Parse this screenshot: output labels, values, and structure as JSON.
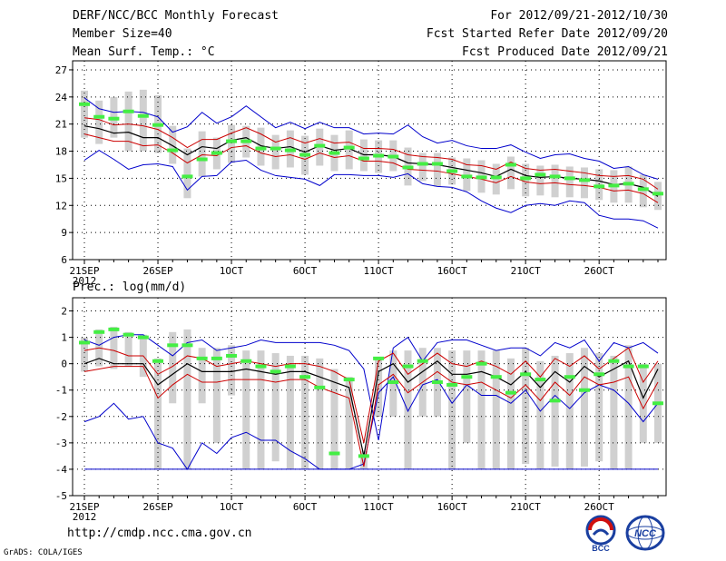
{
  "header": {
    "title": "DERF/NCC/BCC Monthly Forecast",
    "member_size": "Member Size=40",
    "variable": "Mean Surf. Temp.: °C",
    "forecast_range": "For 2012/09/21-2012/10/30",
    "started_refer": "Fcst Started Refer Date 2012/09/20",
    "produced": "Fcst Produced Date 2012/09/21"
  },
  "prec_title": "Prec.: log(mm/d)",
  "footer": {
    "url": "http://cmdp.ncc.cma.gov.cn",
    "credit": "GrADS: COLA/IGES",
    "logo1_text": "BCC",
    "logo2_text": "NCC"
  },
  "colors": {
    "envelope": "#0000cc",
    "spread": "#cc0000",
    "mean": "#000000",
    "box": "#d0d0d0",
    "median": "#44ee44",
    "axis": "#000000"
  },
  "chart_data": [
    {
      "type": "line",
      "title": "Mean Surf. Temp.: °C",
      "ylabel": "°C",
      "ylim": [
        6,
        28
      ],
      "yticks": [
        6,
        9,
        12,
        15,
        18,
        21,
        24,
        27
      ],
      "xtick_labels": [
        {
          "day": 1,
          "label": "21SEP"
        },
        {
          "day": 6,
          "label": "26SEP"
        },
        {
          "day": 11,
          "label": "1OCT"
        },
        {
          "day": 16,
          "label": "6OCT"
        },
        {
          "day": 21,
          "label": "11OCT"
        },
        {
          "day": 26,
          "label": "16OCT"
        },
        {
          "day": 31,
          "label": "21OCT"
        },
        {
          "day": 36,
          "label": "26OCT"
        }
      ],
      "year_label": "2012",
      "days": 40,
      "series": [
        {
          "name": "max",
          "values": [
            23.9,
            22.7,
            22.3,
            22.4,
            22.3,
            21.8,
            20.1,
            20.7,
            22.3,
            21.1,
            21.8,
            23.0,
            21.8,
            20.6,
            21.2,
            20.5,
            21.2,
            20.6,
            20.6,
            19.9,
            20.0,
            19.9,
            20.9,
            19.6,
            18.9,
            19.2,
            18.6,
            18.3,
            18.3,
            18.7,
            17.9,
            17.2,
            17.6,
            17.7,
            17.2,
            16.9,
            16.1,
            16.3,
            15.4,
            14.9
          ]
        },
        {
          "name": "upper",
          "values": [
            21.7,
            21.5,
            20.9,
            21.0,
            20.8,
            20.4,
            19.5,
            18.4,
            19.3,
            19.3,
            20.0,
            20.6,
            19.9,
            19.0,
            19.5,
            18.9,
            19.4,
            18.9,
            19.0,
            18.3,
            18.3,
            18.2,
            17.6,
            17.4,
            17.3,
            17.1,
            16.5,
            16.4,
            16.0,
            16.8,
            16.1,
            15.9,
            16.0,
            15.8,
            15.6,
            15.3,
            15.2,
            15.3,
            14.9,
            13.8
          ]
        },
        {
          "name": "mean",
          "values": [
            20.8,
            20.5,
            20.0,
            20.1,
            19.5,
            19.5,
            18.6,
            17.6,
            18.5,
            18.3,
            19.2,
            19.5,
            18.6,
            18.3,
            18.5,
            17.9,
            18.6,
            18.1,
            18.3,
            17.6,
            17.6,
            17.4,
            16.7,
            16.6,
            16.5,
            16.2,
            15.9,
            15.6,
            15.2,
            16.0,
            15.3,
            15.1,
            15.2,
            15.0,
            14.9,
            14.7,
            14.3,
            14.4,
            14.0,
            13.0
          ]
        },
        {
          "name": "lower",
          "values": [
            19.9,
            19.5,
            19.1,
            19.1,
            18.6,
            18.7,
            17.8,
            16.7,
            17.6,
            17.5,
            18.4,
            18.6,
            17.8,
            17.4,
            17.6,
            17.1,
            17.8,
            17.3,
            17.5,
            16.9,
            16.9,
            16.7,
            16.0,
            15.9,
            15.8,
            15.5,
            15.2,
            14.9,
            14.5,
            15.2,
            14.6,
            14.4,
            14.5,
            14.3,
            14.2,
            14.0,
            13.6,
            13.7,
            13.3,
            12.3
          ]
        },
        {
          "name": "min",
          "values": [
            17.0,
            18.1,
            17.1,
            16.0,
            16.5,
            16.6,
            16.3,
            13.7,
            15.2,
            15.3,
            16.8,
            17.0,
            15.9,
            15.3,
            15.1,
            14.9,
            14.2,
            15.4,
            15.4,
            15.3,
            15.3,
            15.1,
            15.5,
            14.4,
            14.1,
            14.0,
            13.5,
            12.5,
            11.7,
            11.2,
            12.0,
            12.2,
            12.0,
            12.5,
            12.3,
            10.9,
            10.5,
            10.5,
            10.3,
            9.5
          ]
        },
        {
          "name": "box_top",
          "values": [
            24.7,
            23.6,
            24.0,
            24.6,
            24.8,
            24.2,
            20.8,
            18.3,
            20.2,
            19.5,
            20.9,
            20.8,
            20.6,
            19.8,
            20.3,
            19.7,
            20.5,
            19.8,
            20.3,
            19.3,
            19.2,
            19.2,
            18.4,
            17.8,
            17.8,
            17.3,
            17.2,
            17.0,
            16.6,
            17.4,
            16.6,
            16.4,
            16.5,
            16.3,
            16.2,
            16.0,
            15.9,
            16.3,
            15.4,
            14.6
          ]
        },
        {
          "name": "box_bottom",
          "values": [
            19.5,
            18.8,
            19.5,
            18.0,
            18.0,
            17.8,
            16.6,
            12.8,
            15.2,
            16.0,
            16.7,
            17.3,
            16.4,
            16.0,
            16.2,
            15.4,
            16.4,
            15.8,
            16.0,
            15.8,
            15.6,
            15.8,
            14.2,
            14.7,
            14.1,
            14.3,
            13.6,
            13.4,
            13.2,
            13.8,
            13.0,
            13.1,
            12.9,
            12.9,
            12.8,
            12.6,
            12.3,
            12.3,
            11.8,
            11.5
          ]
        },
        {
          "name": "median",
          "values": [
            23.2,
            21.8,
            21.6,
            22.4,
            21.9,
            20.9,
            18.1,
            15.2,
            17.1,
            17.8,
            19.1,
            19.1,
            18.3,
            18.3,
            18.1,
            17.6,
            18.6,
            17.8,
            18.4,
            17.2,
            17.5,
            17.4,
            16.2,
            16.6,
            16.6,
            15.8,
            15.2,
            15.1,
            15.1,
            16.5,
            15.0,
            15.4,
            15.2,
            15.0,
            14.8,
            14.1,
            14.2,
            14.4,
            13.8,
            13.3
          ]
        }
      ]
    },
    {
      "type": "line",
      "title": "Prec.: log(mm/d)",
      "ylabel": "log(mm/d)",
      "ylim": [
        -5,
        2.5
      ],
      "yticks": [
        -5,
        -4,
        -3,
        -2,
        -1,
        0,
        1,
        2
      ],
      "xtick_labels": [
        {
          "day": 1,
          "label": "21SEP"
        },
        {
          "day": 6,
          "label": "26SEP"
        },
        {
          "day": 11,
          "label": "1OCT"
        },
        {
          "day": 16,
          "label": "6OCT"
        },
        {
          "day": 21,
          "label": "11OCT"
        },
        {
          "day": 26,
          "label": "16OCT"
        },
        {
          "day": 31,
          "label": "21OCT"
        },
        {
          "day": 36,
          "label": "26OCT"
        }
      ],
      "year_label": "2012",
      "days": 40,
      "series": [
        {
          "name": "max",
          "values": [
            0.9,
            0.7,
            1.0,
            1.1,
            1.1,
            0.7,
            0.3,
            0.8,
            0.9,
            0.5,
            0.6,
            0.7,
            0.9,
            0.8,
            0.8,
            0.8,
            0.8,
            0.7,
            0.5,
            -0.2,
            -2.9,
            0.6,
            1.0,
            0.1,
            0.8,
            0.9,
            0.9,
            0.7,
            0.5,
            0.6,
            0.6,
            0.3,
            0.8,
            0.6,
            0.9,
            0.1,
            0.8,
            0.6,
            0.8,
            0.4
          ]
        },
        {
          "name": "upper",
          "values": [
            0.5,
            0.6,
            0.5,
            0.3,
            0.3,
            -0.4,
            -0.1,
            0.3,
            0.2,
            -0.1,
            0.0,
            0.1,
            0.0,
            -0.1,
            0.0,
            0.0,
            -0.1,
            -0.3,
            -0.6,
            -3.0,
            0.1,
            0.4,
            -0.4,
            0.0,
            0.4,
            0.0,
            -0.1,
            0.1,
            -0.1,
            -0.4,
            0.1,
            -0.5,
            0.2,
            -0.1,
            0.3,
            -0.2,
            0.2,
            0.6,
            -0.7,
            0.1
          ]
        },
        {
          "name": "mean",
          "values": [
            0.0,
            0.2,
            0.0,
            0.0,
            0.0,
            -0.8,
            -0.4,
            0.0,
            -0.3,
            -0.3,
            -0.3,
            -0.2,
            -0.3,
            -0.4,
            -0.3,
            -0.3,
            -0.5,
            -0.7,
            -0.9,
            -3.5,
            -0.3,
            0.0,
            -0.7,
            -0.3,
            0.1,
            -0.4,
            -0.4,
            -0.3,
            -0.5,
            -0.8,
            -0.3,
            -0.9,
            -0.3,
            -0.7,
            -0.1,
            -0.5,
            -0.2,
            0.1,
            -1.3,
            -0.2
          ]
        },
        {
          "name": "lower",
          "values": [
            -0.3,
            -0.2,
            -0.1,
            -0.1,
            -0.1,
            -1.3,
            -0.8,
            -0.4,
            -0.7,
            -0.7,
            -0.6,
            -0.6,
            -0.6,
            -0.7,
            -0.6,
            -0.6,
            -0.9,
            -1.1,
            -1.3,
            -3.9,
            -0.8,
            -0.4,
            -1.1,
            -0.7,
            -0.3,
            -0.7,
            -0.8,
            -0.7,
            -1.0,
            -1.3,
            -0.8,
            -1.4,
            -0.7,
            -1.2,
            -0.5,
            -0.8,
            -0.7,
            -0.5,
            -1.7,
            -0.7
          ]
        },
        {
          "name": "min",
          "values": [
            -2.2,
            -2.0,
            -1.5,
            -2.1,
            -2.0,
            -3.0,
            -3.2,
            -4.0,
            -3.0,
            -3.4,
            -2.8,
            -2.6,
            -2.9,
            -2.9,
            -3.3,
            -3.6,
            -4.0,
            -4.0,
            -4.0,
            -3.8,
            -1.1,
            -0.5,
            -1.8,
            -0.8,
            -0.6,
            -1.5,
            -0.8,
            -1.2,
            -1.2,
            -1.5,
            -1.0,
            -1.8,
            -1.2,
            -1.7,
            -1.1,
            -0.8,
            -1.0,
            -1.5,
            -2.2,
            -1.5
          ]
        },
        {
          "name": "floor",
          "values": [
            -4.0,
            -4.0,
            -4.0,
            -4.0,
            -4.0,
            -4.0,
            -4.0,
            -4.0,
            -4.0,
            -4.0,
            -4.0,
            -4.0,
            -4.0,
            -4.0,
            -4.0,
            -4.0,
            -4.0,
            -4.0,
            -4.0,
            -4.0,
            -4.0,
            -4.0,
            -4.0,
            -4.0,
            -4.0,
            -4.0,
            -4.0,
            -4.0,
            -4.0,
            -4.0,
            -4.0,
            -4.0,
            -4.0,
            -4.0,
            -4.0,
            -4.0,
            -4.0,
            -4.0,
            -4.0,
            -4.0
          ]
        },
        {
          "name": "box_top",
          "values": [
            1.0,
            1.3,
            1.4,
            1.2,
            1.1,
            0.2,
            1.2,
            1.3,
            0.6,
            0.6,
            0.7,
            0.5,
            0.5,
            0.4,
            0.3,
            0.3,
            0.2,
            -0.2,
            -0.5,
            -3.3,
            0.2,
            0.5,
            0.5,
            0.6,
            0.6,
            0.5,
            0.5,
            0.5,
            0.5,
            0.2,
            0.6,
            0.1,
            0.3,
            0.4,
            0.6,
            0.4,
            0.3,
            0.7,
            0.0,
            0.0
          ]
        },
        {
          "name": "box_bottom",
          "values": [
            -0.3,
            -0.1,
            -0.2,
            -0.1,
            -0.5,
            -4.0,
            -1.5,
            -4.0,
            -1.5,
            -3.0,
            -1.2,
            -4.0,
            -4.0,
            -3.7,
            -4.0,
            -4.0,
            -4.0,
            -4.0,
            -4.0,
            -4.0,
            -2.0,
            -2.0,
            -4.0,
            -2.0,
            -2.0,
            -4.0,
            -3.0,
            -4.0,
            -4.0,
            -4.0,
            -3.8,
            -4.0,
            -3.9,
            -4.0,
            -3.9,
            -3.7,
            -4.0,
            -4.0,
            -3.0,
            -3.0
          ]
        },
        {
          "name": "median",
          "values": [
            0.8,
            1.2,
            1.3,
            1.1,
            1.0,
            0.1,
            0.7,
            0.7,
            0.2,
            0.2,
            0.3,
            0.1,
            -0.1,
            -0.3,
            -0.1,
            -0.5,
            -0.9,
            -3.4,
            -0.6,
            -3.5,
            0.2,
            -0.7,
            -0.1,
            0.1,
            -0.7,
            -0.8,
            -0.5,
            0.0,
            -0.5,
            -1.1,
            -0.4,
            -0.6,
            -1.4,
            -0.5,
            -1.0,
            -0.4,
            0.1,
            -0.1,
            -0.1,
            -1.5
          ]
        }
      ]
    }
  ]
}
